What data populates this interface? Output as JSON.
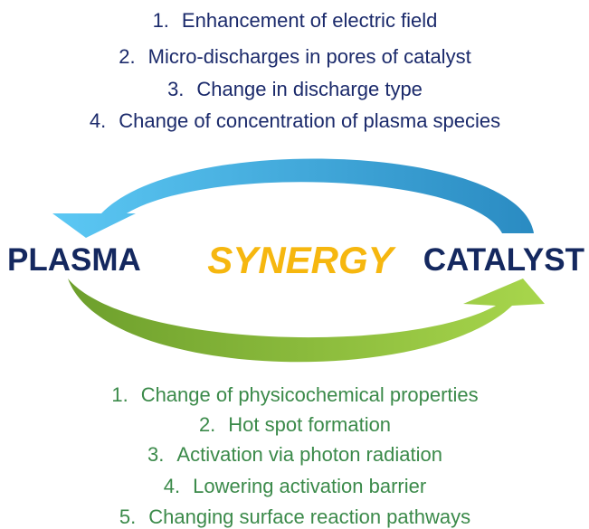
{
  "top_list": [
    {
      "number": "1.",
      "text": "Enhancement of electric field"
    },
    {
      "number": "2.",
      "text": "Micro-discharges in pores of catalyst"
    },
    {
      "number": "3.",
      "text": "Change in discharge type"
    },
    {
      "number": "4.",
      "text": "Change of concentration of plasma species"
    }
  ],
  "center": {
    "left": "PLASMA",
    "middle": "SYNERGY",
    "right": "CATALYST"
  },
  "bottom_list": [
    {
      "number": "1.",
      "text": "Change of physicochemical properties"
    },
    {
      "number": "2.",
      "text": "Hot spot formation"
    },
    {
      "number": "3.",
      "text": "Activation via photon radiation"
    },
    {
      "number": "4.",
      "text": "Lowering activation barrier"
    },
    {
      "number": "5.",
      "text": "Changing surface reaction pathways"
    }
  ]
}
